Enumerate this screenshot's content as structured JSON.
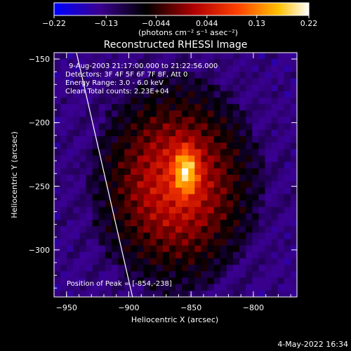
{
  "chart_data": {
    "type": "heatmap",
    "title": "Reconstructed RHESSI Image",
    "xlabel": "Heliocentric X (arcsec)",
    "ylabel": "Heliocentric Y (arcsec)",
    "xlim": [
      -960,
      -765
    ],
    "ylim": [
      -337,
      -145
    ],
    "x_ticks": [
      -950,
      -900,
      -850,
      -800
    ],
    "x_tick_labels": [
      "−950",
      "−900",
      "−850",
      "−800"
    ],
    "y_ticks": [
      -150,
      -200,
      -250,
      -300
    ],
    "y_tick_labels": [
      "−150",
      "−200",
      "−250",
      "−300"
    ],
    "colorbar": {
      "range": [
        -0.22,
        0.22
      ],
      "ticks": [
        -0.22,
        -0.13,
        -0.044,
        0.044,
        0.13,
        0.22
      ],
      "tick_labels": [
        "−0.22",
        "−0.13",
        "−0.044",
        "0.044",
        "0.13",
        "0.22"
      ],
      "unit_label": "(photons cm⁻² s⁻¹ asec⁻²)",
      "colors": [
        "#0000ff",
        "#3a0090",
        "#000000",
        "#b00000",
        "#ff4000",
        "#ffc000",
        "#ffffff"
      ]
    },
    "peak": {
      "x": -854,
      "y": -238,
      "value": 0.22
    },
    "source_center": [
      -862,
      -248
    ],
    "limb_curve": [
      [
        -942,
        -145
      ],
      [
        -922,
        -230
      ],
      [
        -897,
        -337
      ]
    ],
    "annotations": {
      "time": "9-Aug-2003 21:17:00.000 to 21:22:56.000",
      "detectors": "Detectors: 3F 4F 5F 6F 7F 8F, Att 0",
      "energy": "Energy Range: 3.0 - 6.0 keV",
      "clean": "Clean    Total counts: 2.23E+04",
      "peak_label": "Position of Peak = [-854,-238]"
    },
    "grid": false
  },
  "footer": {
    "timestamp": "4-May-2022 16:34"
  }
}
